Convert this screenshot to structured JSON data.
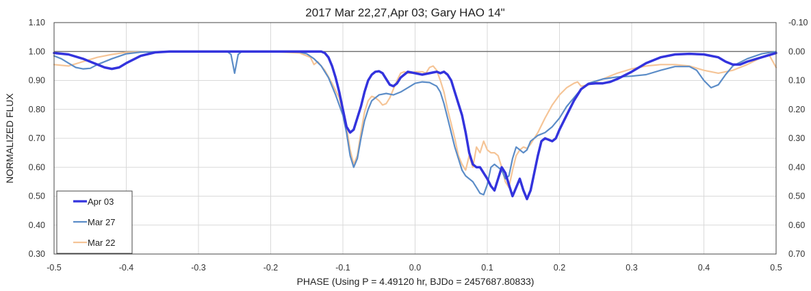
{
  "chart_data": {
    "type": "line",
    "title": "2017 Mar 22,27,Apr 03; Gary HAO 14\"",
    "xlabel": "PHASE (Using P = 4.49120 hr, BJDo = 2457687.80833)",
    "ylabel": "NORMALIZED FLUX",
    "xlim": [
      -0.5,
      0.5
    ],
    "ylim": [
      0.3,
      1.1
    ],
    "y2lim": [
      -0.1,
      0.7
    ],
    "y2_inverted": true,
    "reference_line": 1.0,
    "grid": true,
    "legend_position": "bottom-left",
    "x_ticks": [
      "-0.5",
      "-0.4",
      "-0.3",
      "-0.2",
      "-0.1",
      "0.0",
      "0.1",
      "0.2",
      "0.3",
      "0.4",
      "0.5"
    ],
    "y_ticks": [
      "1.10",
      "1.00",
      "0.90",
      "0.80",
      "0.70",
      "0.60",
      "0.50",
      "0.40",
      "0.30"
    ],
    "y2_ticks": [
      "-0.10",
      "0.00",
      "0.10",
      "0.20",
      "0.30",
      "0.40",
      "0.50",
      "0.60",
      "0.70"
    ],
    "series": [
      {
        "name": "Mar 22",
        "color": "#f5c496",
        "width": 2.2,
        "points": [
          [
            -0.5,
            0.955
          ],
          [
            -0.48,
            0.95
          ],
          [
            -0.46,
            0.965
          ],
          [
            -0.44,
            0.98
          ],
          [
            -0.42,
            0.99
          ],
          [
            -0.4,
            0.997
          ],
          [
            -0.35,
            1.0
          ],
          [
            -0.2,
            1.0
          ],
          [
            -0.16,
            0.995
          ],
          [
            -0.145,
            0.98
          ],
          [
            -0.14,
            0.955
          ],
          [
            -0.135,
            0.965
          ],
          [
            -0.125,
            0.935
          ],
          [
            -0.115,
            0.89
          ],
          [
            -0.105,
            0.84
          ],
          [
            -0.095,
            0.74
          ],
          [
            -0.09,
            0.66
          ],
          [
            -0.085,
            0.61
          ],
          [
            -0.08,
            0.64
          ],
          [
            -0.075,
            0.72
          ],
          [
            -0.07,
            0.79
          ],
          [
            -0.065,
            0.83
          ],
          [
            -0.06,
            0.845
          ],
          [
            -0.055,
            0.84
          ],
          [
            -0.05,
            0.83
          ],
          [
            -0.045,
            0.815
          ],
          [
            -0.04,
            0.82
          ],
          [
            -0.035,
            0.84
          ],
          [
            -0.03,
            0.87
          ],
          [
            -0.025,
            0.9
          ],
          [
            -0.02,
            0.925
          ],
          [
            -0.015,
            0.93
          ],
          [
            -0.01,
            0.925
          ],
          [
            -0.005,
            0.925
          ],
          [
            0.0,
            0.93
          ],
          [
            0.01,
            0.93
          ],
          [
            0.015,
            0.925
          ],
          [
            0.02,
            0.945
          ],
          [
            0.025,
            0.95
          ],
          [
            0.03,
            0.935
          ],
          [
            0.035,
            0.9
          ],
          [
            0.04,
            0.86
          ],
          [
            0.045,
            0.8
          ],
          [
            0.05,
            0.75
          ],
          [
            0.055,
            0.7
          ],
          [
            0.06,
            0.64
          ],
          [
            0.065,
            0.61
          ],
          [
            0.07,
            0.59
          ],
          [
            0.075,
            0.64
          ],
          [
            0.08,
            0.6
          ],
          [
            0.085,
            0.67
          ],
          [
            0.09,
            0.65
          ],
          [
            0.095,
            0.69
          ],
          [
            0.1,
            0.66
          ],
          [
            0.105,
            0.65
          ],
          [
            0.11,
            0.65
          ],
          [
            0.115,
            0.64
          ],
          [
            0.12,
            0.6
          ],
          [
            0.125,
            0.55
          ],
          [
            0.13,
            0.53
          ],
          [
            0.135,
            0.59
          ],
          [
            0.14,
            0.64
          ],
          [
            0.145,
            0.66
          ],
          [
            0.15,
            0.67
          ],
          [
            0.155,
            0.665
          ],
          [
            0.16,
            0.68
          ],
          [
            0.17,
            0.72
          ],
          [
            0.18,
            0.77
          ],
          [
            0.19,
            0.815
          ],
          [
            0.2,
            0.85
          ],
          [
            0.21,
            0.875
          ],
          [
            0.22,
            0.89
          ],
          [
            0.225,
            0.895
          ],
          [
            0.23,
            0.88
          ],
          [
            0.24,
            0.885
          ],
          [
            0.25,
            0.895
          ],
          [
            0.26,
            0.905
          ],
          [
            0.28,
            0.925
          ],
          [
            0.3,
            0.94
          ],
          [
            0.32,
            0.95
          ],
          [
            0.34,
            0.955
          ],
          [
            0.36,
            0.955
          ],
          [
            0.38,
            0.95
          ],
          [
            0.4,
            0.935
          ],
          [
            0.42,
            0.925
          ],
          [
            0.44,
            0.935
          ],
          [
            0.46,
            0.955
          ],
          [
            0.48,
            0.98
          ],
          [
            0.49,
            0.99
          ],
          [
            0.5,
            0.945
          ]
        ]
      },
      {
        "name": "Mar 27",
        "color": "#5b8cc7",
        "width": 2.2,
        "points": [
          [
            -0.5,
            0.985
          ],
          [
            -0.49,
            0.975
          ],
          [
            -0.48,
            0.96
          ],
          [
            -0.47,
            0.945
          ],
          [
            -0.46,
            0.94
          ],
          [
            -0.45,
            0.942
          ],
          [
            -0.44,
            0.955
          ],
          [
            -0.42,
            0.975
          ],
          [
            -0.4,
            0.992
          ],
          [
            -0.38,
            0.998
          ],
          [
            -0.35,
            1.0
          ],
          [
            -0.26,
            1.0
          ],
          [
            -0.255,
            0.99
          ],
          [
            -0.25,
            0.925
          ],
          [
            -0.245,
            0.99
          ],
          [
            -0.24,
            1.0
          ],
          [
            -0.2,
            1.0
          ],
          [
            -0.16,
            0.998
          ],
          [
            -0.15,
            0.992
          ],
          [
            -0.14,
            0.975
          ],
          [
            -0.13,
            0.95
          ],
          [
            -0.12,
            0.91
          ],
          [
            -0.11,
            0.85
          ],
          [
            -0.1,
            0.78
          ],
          [
            -0.095,
            0.72
          ],
          [
            -0.09,
            0.64
          ],
          [
            -0.085,
            0.6
          ],
          [
            -0.08,
            0.63
          ],
          [
            -0.075,
            0.7
          ],
          [
            -0.07,
            0.76
          ],
          [
            -0.065,
            0.8
          ],
          [
            -0.06,
            0.83
          ],
          [
            -0.05,
            0.85
          ],
          [
            -0.04,
            0.855
          ],
          [
            -0.03,
            0.85
          ],
          [
            -0.02,
            0.86
          ],
          [
            -0.01,
            0.875
          ],
          [
            0.0,
            0.89
          ],
          [
            0.01,
            0.895
          ],
          [
            0.02,
            0.893
          ],
          [
            0.03,
            0.88
          ],
          [
            0.035,
            0.86
          ],
          [
            0.04,
            0.82
          ],
          [
            0.045,
            0.77
          ],
          [
            0.05,
            0.72
          ],
          [
            0.055,
            0.67
          ],
          [
            0.06,
            0.63
          ],
          [
            0.065,
            0.59
          ],
          [
            0.07,
            0.57
          ],
          [
            0.075,
            0.56
          ],
          [
            0.08,
            0.55
          ],
          [
            0.085,
            0.53
          ],
          [
            0.09,
            0.51
          ],
          [
            0.095,
            0.505
          ],
          [
            0.1,
            0.54
          ],
          [
            0.105,
            0.6
          ],
          [
            0.11,
            0.61
          ],
          [
            0.115,
            0.6
          ],
          [
            0.12,
            0.59
          ],
          [
            0.125,
            0.56
          ],
          [
            0.13,
            0.57
          ],
          [
            0.135,
            0.63
          ],
          [
            0.14,
            0.67
          ],
          [
            0.145,
            0.66
          ],
          [
            0.15,
            0.65
          ],
          [
            0.155,
            0.66
          ],
          [
            0.16,
            0.69
          ],
          [
            0.17,
            0.71
          ],
          [
            0.18,
            0.72
          ],
          [
            0.19,
            0.74
          ],
          [
            0.2,
            0.77
          ],
          [
            0.21,
            0.81
          ],
          [
            0.22,
            0.84
          ],
          [
            0.23,
            0.87
          ],
          [
            0.24,
            0.89
          ],
          [
            0.26,
            0.905
          ],
          [
            0.28,
            0.912
          ],
          [
            0.3,
            0.915
          ],
          [
            0.32,
            0.92
          ],
          [
            0.34,
            0.935
          ],
          [
            0.36,
            0.948
          ],
          [
            0.38,
            0.948
          ],
          [
            0.39,
            0.935
          ],
          [
            0.4,
            0.9
          ],
          [
            0.41,
            0.875
          ],
          [
            0.42,
            0.885
          ],
          [
            0.43,
            0.92
          ],
          [
            0.44,
            0.95
          ],
          [
            0.46,
            0.975
          ],
          [
            0.48,
            0.992
          ],
          [
            0.5,
            1.0
          ]
        ]
      },
      {
        "name": "Apr 03",
        "color": "#3333dd",
        "width": 3.5,
        "points": [
          [
            -0.5,
            0.995
          ],
          [
            -0.48,
            0.99
          ],
          [
            -0.46,
            0.975
          ],
          [
            -0.44,
            0.955
          ],
          [
            -0.43,
            0.945
          ],
          [
            -0.42,
            0.94
          ],
          [
            -0.41,
            0.945
          ],
          [
            -0.4,
            0.96
          ],
          [
            -0.38,
            0.985
          ],
          [
            -0.36,
            0.997
          ],
          [
            -0.34,
            1.0
          ],
          [
            -0.13,
            1.0
          ],
          [
            -0.125,
            0.995
          ],
          [
            -0.12,
            0.98
          ],
          [
            -0.115,
            0.95
          ],
          [
            -0.11,
            0.91
          ],
          [
            -0.105,
            0.86
          ],
          [
            -0.1,
            0.8
          ],
          [
            -0.095,
            0.74
          ],
          [
            -0.09,
            0.72
          ],
          [
            -0.085,
            0.73
          ],
          [
            -0.08,
            0.77
          ],
          [
            -0.075,
            0.81
          ],
          [
            -0.07,
            0.86
          ],
          [
            -0.065,
            0.9
          ],
          [
            -0.06,
            0.92
          ],
          [
            -0.055,
            0.93
          ],
          [
            -0.05,
            0.932
          ],
          [
            -0.045,
            0.925
          ],
          [
            -0.04,
            0.905
          ],
          [
            -0.035,
            0.885
          ],
          [
            -0.03,
            0.88
          ],
          [
            -0.025,
            0.89
          ],
          [
            -0.02,
            0.91
          ],
          [
            -0.015,
            0.92
          ],
          [
            -0.01,
            0.93
          ],
          [
            0.0,
            0.925
          ],
          [
            0.01,
            0.92
          ],
          [
            0.02,
            0.925
          ],
          [
            0.03,
            0.93
          ],
          [
            0.035,
            0.925
          ],
          [
            0.04,
            0.93
          ],
          [
            0.045,
            0.92
          ],
          [
            0.05,
            0.9
          ],
          [
            0.055,
            0.86
          ],
          [
            0.06,
            0.82
          ],
          [
            0.065,
            0.78
          ],
          [
            0.07,
            0.72
          ],
          [
            0.075,
            0.65
          ],
          [
            0.08,
            0.61
          ],
          [
            0.085,
            0.6
          ],
          [
            0.09,
            0.6
          ],
          [
            0.095,
            0.58
          ],
          [
            0.1,
            0.56
          ],
          [
            0.105,
            0.535
          ],
          [
            0.11,
            0.52
          ],
          [
            0.115,
            0.56
          ],
          [
            0.12,
            0.6
          ],
          [
            0.125,
            0.58
          ],
          [
            0.13,
            0.54
          ],
          [
            0.135,
            0.5
          ],
          [
            0.14,
            0.53
          ],
          [
            0.145,
            0.56
          ],
          [
            0.15,
            0.52
          ],
          [
            0.155,
            0.49
          ],
          [
            0.16,
            0.52
          ],
          [
            0.165,
            0.58
          ],
          [
            0.17,
            0.64
          ],
          [
            0.175,
            0.69
          ],
          [
            0.18,
            0.7
          ],
          [
            0.185,
            0.695
          ],
          [
            0.19,
            0.69
          ],
          [
            0.195,
            0.7
          ],
          [
            0.2,
            0.73
          ],
          [
            0.21,
            0.78
          ],
          [
            0.22,
            0.83
          ],
          [
            0.23,
            0.87
          ],
          [
            0.24,
            0.888
          ],
          [
            0.25,
            0.89
          ],
          [
            0.26,
            0.89
          ],
          [
            0.27,
            0.895
          ],
          [
            0.28,
            0.905
          ],
          [
            0.3,
            0.93
          ],
          [
            0.32,
            0.96
          ],
          [
            0.34,
            0.98
          ],
          [
            0.36,
            0.99
          ],
          [
            0.38,
            0.992
          ],
          [
            0.4,
            0.99
          ],
          [
            0.42,
            0.98
          ],
          [
            0.43,
            0.965
          ],
          [
            0.44,
            0.955
          ],
          [
            0.45,
            0.955
          ],
          [
            0.46,
            0.965
          ],
          [
            0.48,
            0.98
          ],
          [
            0.5,
            0.995
          ]
        ]
      }
    ],
    "legend": [
      "Apr 03",
      "Mar 27",
      "Mar 22"
    ]
  }
}
